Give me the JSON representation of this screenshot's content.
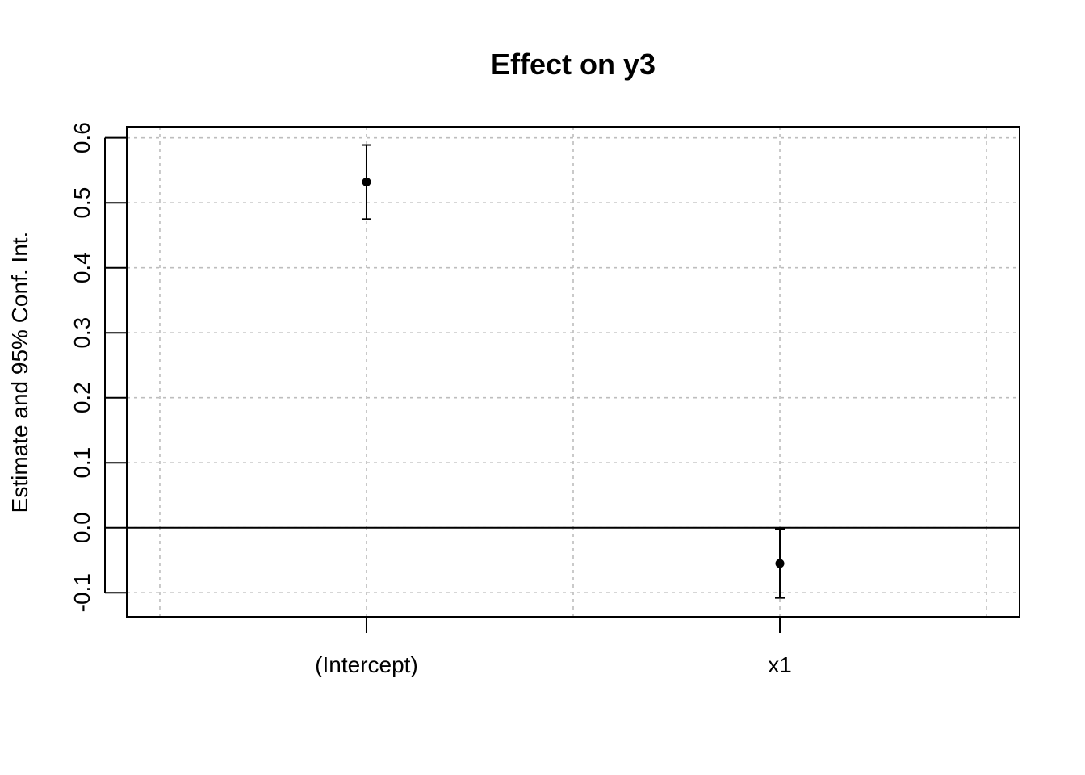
{
  "chart_data": {
    "type": "scatter",
    "title": "Effect on y3",
    "xlabel": "",
    "ylabel": "Estimate and 95% Conf. Int.",
    "categories": [
      "(Intercept)",
      "x1"
    ],
    "estimates": [
      0.532,
      -0.055
    ],
    "ci_lower": [
      0.475,
      -0.108
    ],
    "ci_upper": [
      0.589,
      -0.002
    ],
    "xlim": [
      0.42,
      2.58
    ],
    "ylim": [
      -0.137,
      0.617
    ],
    "yticks": [
      -0.1,
      0.0,
      0.1,
      0.2,
      0.3,
      0.4,
      0.5,
      0.6
    ],
    "ytick_labels": [
      "-0.1",
      "0.0",
      "0.1",
      "0.2",
      "0.3",
      "0.4",
      "0.5",
      "0.6"
    ],
    "xgrid": [
      0.5,
      1.0,
      1.5,
      2.0,
      2.5
    ],
    "reference_line": 0.0,
    "grid": true,
    "point_color": "#000000",
    "grid_color": "#bdbdbd"
  }
}
